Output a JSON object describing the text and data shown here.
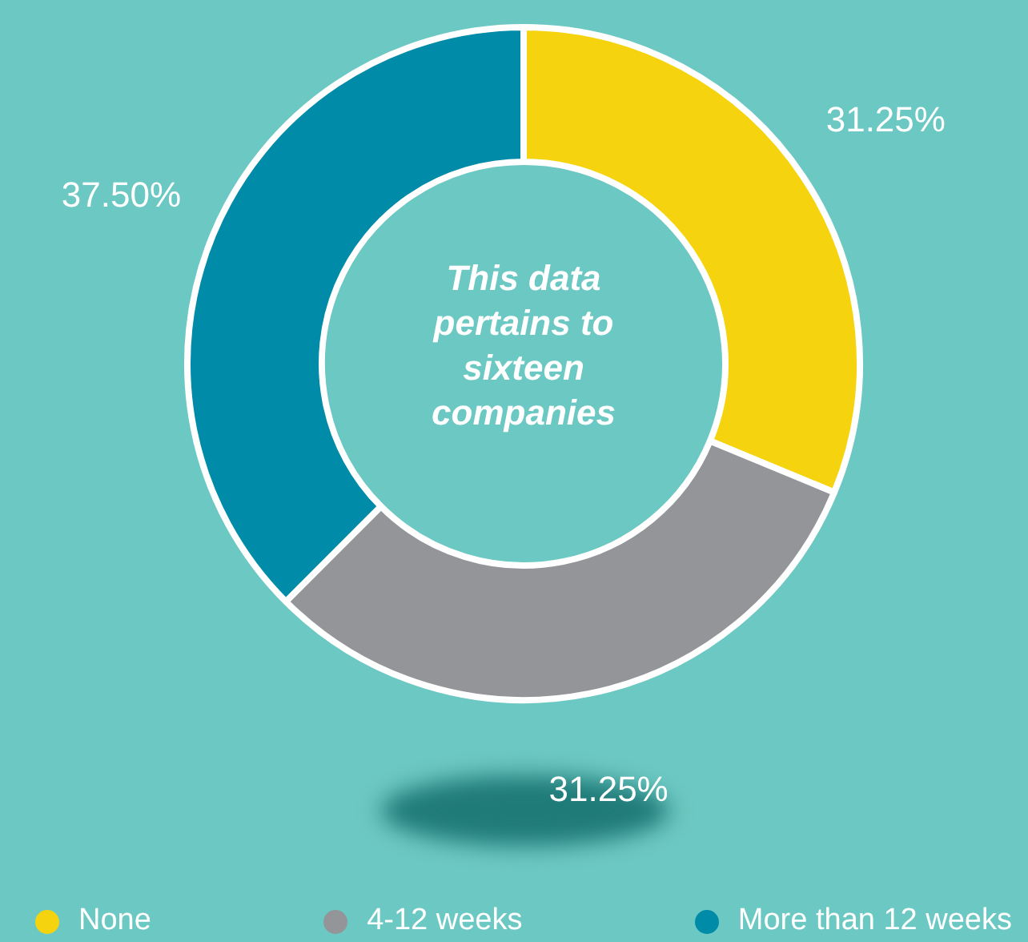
{
  "chart_data": {
    "type": "donut",
    "categories": [
      "None",
      "4-12 weeks",
      "More than 12 weeks"
    ],
    "values": [
      31.25,
      31.25,
      37.5
    ],
    "value_labels": [
      "31.25%",
      "31.25%",
      "37.50%"
    ],
    "colors": [
      "#f5d40f",
      "#939598",
      "#008ba8"
    ],
    "annotations": [
      "This data pertains to sixteen companies"
    ],
    "legend": "bottom"
  }
}
